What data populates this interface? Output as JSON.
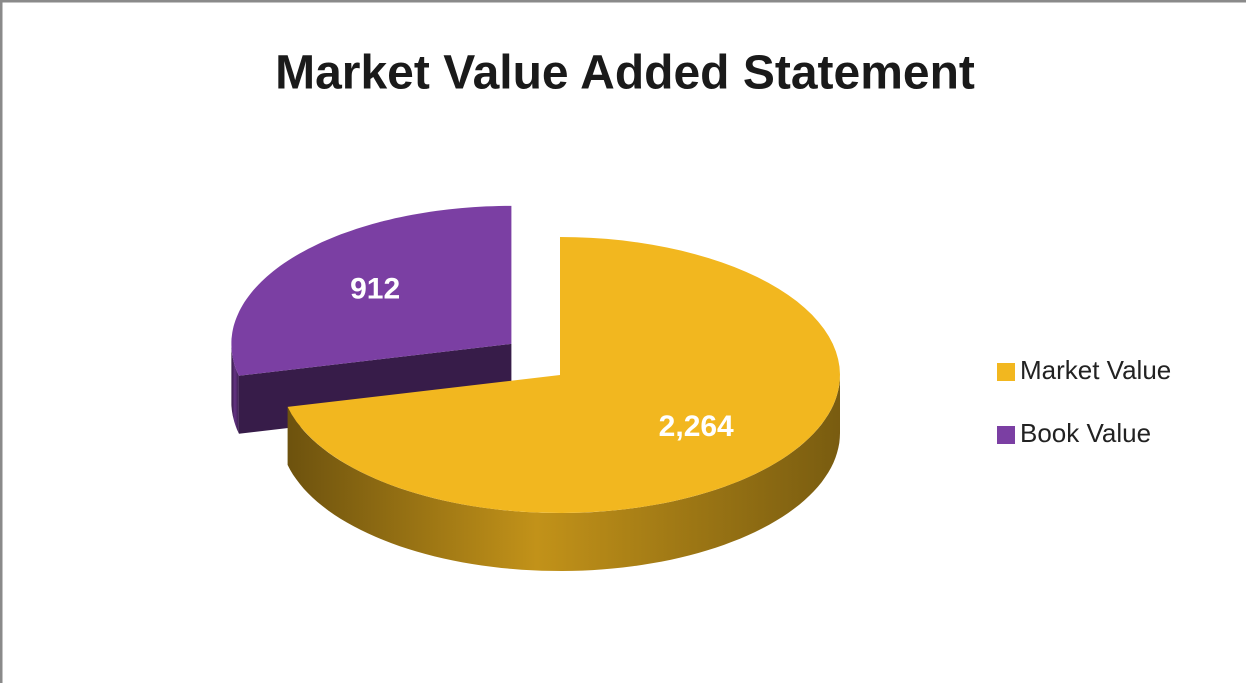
{
  "chart_data": {
    "type": "pie",
    "title": "Market Value Added Statement",
    "categories": [
      "Market Value",
      "Book Value"
    ],
    "values": [
      2264,
      912
    ],
    "value_labels": [
      "2,264",
      "912"
    ],
    "colors": [
      "#f2b71f",
      "#7b3fa3"
    ]
  }
}
